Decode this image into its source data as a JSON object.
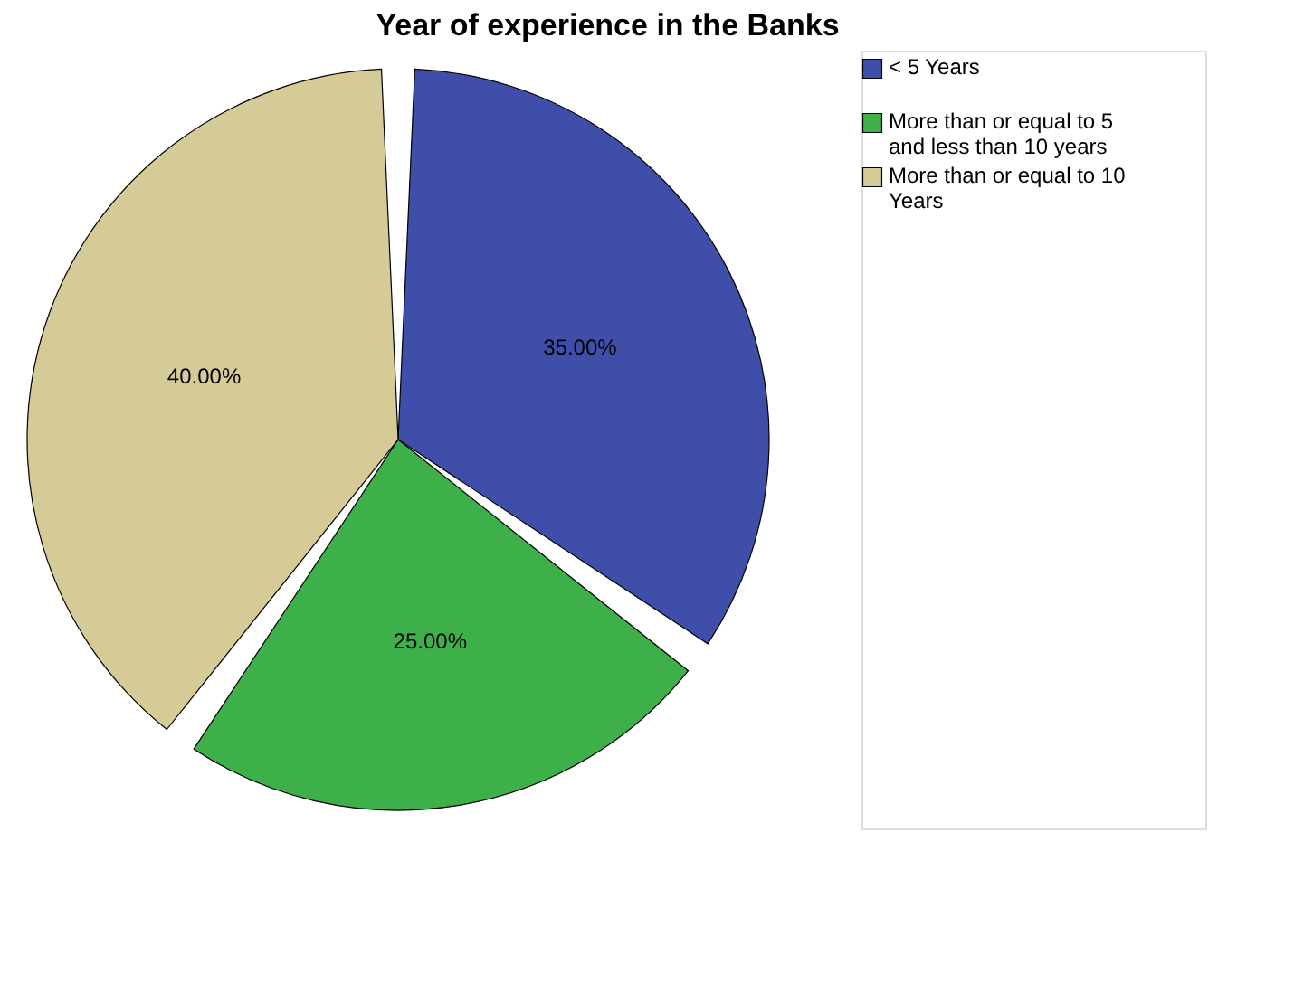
{
  "chart_data": {
    "type": "pie",
    "title": "Year of experience in the Banks",
    "categories": [
      "< 5 Years",
      "More than or equal to 5 and less than 10 years",
      "More than or equal to 10 Years"
    ],
    "values": [
      35,
      25,
      40
    ],
    "colors": [
      "#3f4ea8",
      "#3eb04a",
      "#d5cb96"
    ],
    "value_labels": [
      "35.00%",
      "25.00%",
      "40.00%"
    ],
    "legend": "top right"
  }
}
